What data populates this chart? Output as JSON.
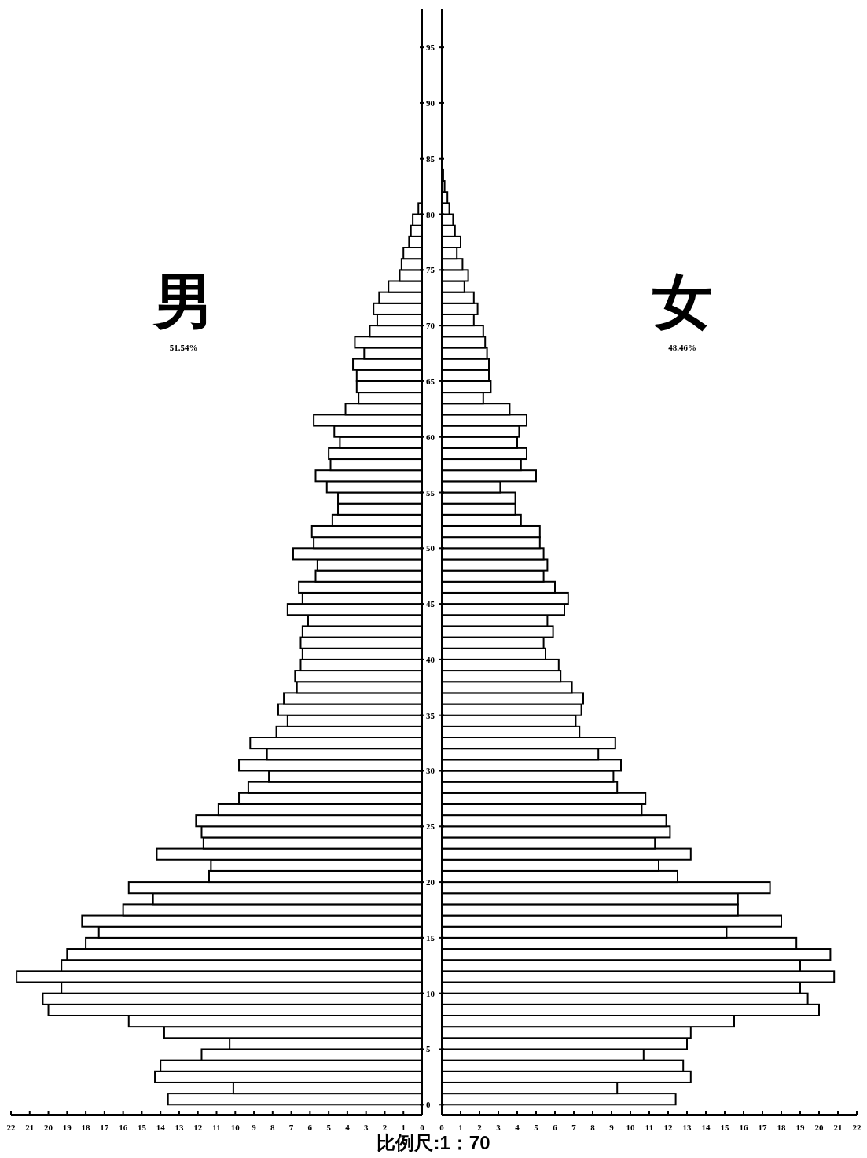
{
  "chart_data": [
    {
      "type": "bar",
      "orientation": "horizontal",
      "title": "男",
      "subtitle": "51.54%",
      "x": [
        0.5,
        1.5,
        2.5,
        3.5,
        4.5,
        5.5,
        6.5,
        7.5,
        8.5,
        9.5,
        10.5,
        11.5,
        12.5,
        13.5,
        14.5,
        15.5,
        16.5,
        17.5,
        18.5,
        19.5,
        20.5,
        21.5,
        22.5,
        23.5,
        24.5,
        25.5,
        26.5,
        27.5,
        28.5,
        29.5,
        30.5,
        31.5,
        32.5,
        33.5,
        34.5,
        35.5,
        36.5,
        37.5,
        38.5,
        39.5,
        40.5,
        41.5,
        42.5,
        43.5,
        44.5,
        45.5,
        46.5,
        47.5,
        48.5,
        49.5,
        50.5,
        51.5,
        52.5,
        53.5,
        54.5,
        55.5,
        56.5,
        57.5,
        58.5,
        59.5,
        60.5,
        61.5,
        62.5,
        63.5,
        64.5,
        65.5,
        66.5,
        67.5,
        68.5,
        69.5,
        70.5,
        71.5,
        72.5,
        73.5,
        74.5,
        75.5,
        76.5,
        77.5,
        78.5,
        79.5,
        80.5
      ],
      "series": [
        {
          "color": "#ffffff",
          "values": [
            13.6,
            10.1,
            14.3,
            14.0,
            11.8,
            10.3,
            13.8,
            15.7,
            20.0,
            20.3,
            19.3,
            21.7,
            19.3,
            19.0,
            18.0,
            17.3,
            18.2,
            16.0,
            14.4,
            15.7,
            11.4,
            11.3,
            14.2,
            11.7,
            11.8,
            12.1,
            10.9,
            9.8,
            9.3,
            8.2,
            9.8,
            8.3,
            9.2,
            7.8,
            7.2,
            7.7,
            7.4,
            6.7,
            6.8,
            6.5,
            6.4,
            6.5,
            6.4,
            6.1,
            7.2,
            6.4,
            6.6,
            5.7,
            5.6,
            6.9,
            5.8,
            5.9,
            4.8,
            4.5,
            4.5,
            5.1,
            5.7,
            4.9,
            5.0,
            4.4,
            4.7,
            5.8,
            4.1,
            3.4,
            3.5,
            3.5,
            3.7,
            3.1,
            3.6,
            2.8,
            2.4,
            2.6,
            2.3,
            1.8,
            1.2,
            1.1,
            1.0,
            0.7,
            0.6,
            0.5,
            0.2
          ]
        }
      ],
      "xlim": [
        22,
        0
      ],
      "xticks": [
        22,
        21,
        20,
        19,
        18,
        17,
        16,
        15,
        14,
        13,
        12,
        11,
        10,
        9,
        8,
        7,
        6,
        5,
        4,
        3,
        2,
        1,
        0
      ],
      "ylim": [
        -0.9,
        98.4
      ],
      "yticks": [
        0,
        5,
        10,
        15,
        20,
        25,
        30,
        35,
        40,
        45,
        50,
        55,
        60,
        65,
        70,
        75,
        80,
        85,
        90,
        95
      ]
    },
    {
      "type": "bar",
      "orientation": "horizontal",
      "title": "女",
      "subtitle": "48.46%",
      "x": [
        0.5,
        1.5,
        2.5,
        3.5,
        4.5,
        5.5,
        6.5,
        7.5,
        8.5,
        9.5,
        10.5,
        11.5,
        12.5,
        13.5,
        14.5,
        15.5,
        16.5,
        17.5,
        18.5,
        19.5,
        20.5,
        21.5,
        22.5,
        23.5,
        24.5,
        25.5,
        26.5,
        27.5,
        28.5,
        29.5,
        30.5,
        31.5,
        32.5,
        33.5,
        34.5,
        35.5,
        36.5,
        37.5,
        38.5,
        39.5,
        40.5,
        41.5,
        42.5,
        43.5,
        44.5,
        45.5,
        46.5,
        47.5,
        48.5,
        49.5,
        50.5,
        51.5,
        52.5,
        53.5,
        54.5,
        55.5,
        56.5,
        57.5,
        58.5,
        59.5,
        60.5,
        61.5,
        62.5,
        63.5,
        64.5,
        65.5,
        66.5,
        67.5,
        68.5,
        69.5,
        70.5,
        71.5,
        72.5,
        73.5,
        74.5,
        75.5,
        76.5,
        77.5,
        78.5,
        79.5,
        80.5,
        81.5,
        82.5,
        83.5
      ],
      "series": [
        {
          "color": "#ffffff",
          "values": [
            12.4,
            9.3,
            13.2,
            12.8,
            10.7,
            13.0,
            13.2,
            15.5,
            20.0,
            19.4,
            19.0,
            20.8,
            19.0,
            20.6,
            18.8,
            15.1,
            18.0,
            15.7,
            15.7,
            17.4,
            12.5,
            11.5,
            13.2,
            11.3,
            12.1,
            11.9,
            10.6,
            10.8,
            9.3,
            9.1,
            9.5,
            8.3,
            9.2,
            7.3,
            7.1,
            7.4,
            7.5,
            6.9,
            6.3,
            6.2,
            5.5,
            5.4,
            5.9,
            5.6,
            6.5,
            6.7,
            6.0,
            5.4,
            5.6,
            5.4,
            5.2,
            5.2,
            4.2,
            3.9,
            3.9,
            3.1,
            5.0,
            4.2,
            4.5,
            4.0,
            4.1,
            4.5,
            3.6,
            2.2,
            2.6,
            2.5,
            2.5,
            2.4,
            2.3,
            2.2,
            1.7,
            1.9,
            1.7,
            1.2,
            1.4,
            1.1,
            0.8,
            1.0,
            0.7,
            0.6,
            0.4,
            0.3,
            0.15,
            0.08
          ]
        }
      ],
      "xlim": [
        0,
        22
      ],
      "xticks": [
        0,
        1,
        2,
        3,
        4,
        5,
        6,
        7,
        8,
        9,
        10,
        11,
        12,
        13,
        14,
        15,
        16,
        17,
        18,
        19,
        20,
        21,
        22
      ],
      "ylim": [
        -0.9,
        98.4
      ],
      "yticks": [
        0,
        5,
        10,
        15,
        20,
        25,
        30,
        35,
        40,
        45,
        50,
        55,
        60,
        65,
        70,
        75,
        80,
        85,
        90,
        95
      ],
      "tick_labels": "x",
      "annotations": [
        "比例尺:1：70"
      ]
    }
  ]
}
